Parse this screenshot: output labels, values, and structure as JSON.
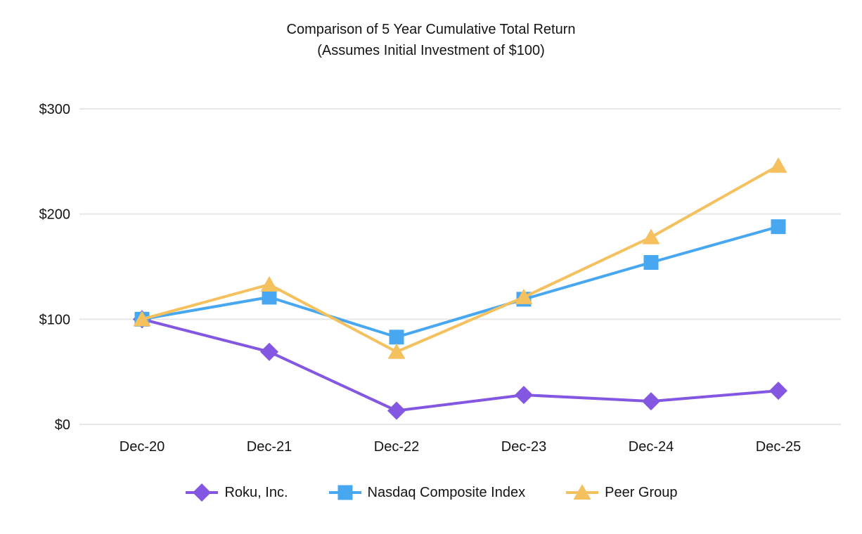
{
  "title": {
    "line1": "Comparison of 5 Year Cumulative Total Return",
    "line2": "(Assumes Initial Investment of $100)"
  },
  "chart_data": {
    "type": "line",
    "categories": [
      "Dec-20",
      "Dec-21",
      "Dec-22",
      "Dec-23",
      "Dec-24",
      "Dec-25"
    ],
    "series": [
      {
        "name": "Roku, Inc.",
        "marker": "diamond",
        "color": "#8457E2",
        "values": [
          100,
          69,
          13,
          28,
          22,
          32
        ]
      },
      {
        "name": "Nasdaq Composite Index",
        "marker": "square",
        "color": "#47A7F0",
        "values": [
          100,
          121,
          83,
          119,
          154,
          188
        ]
      },
      {
        "name": "Peer Group",
        "marker": "triangle",
        "color": "#F5C05E",
        "values": [
          100,
          133,
          69,
          121,
          178,
          246
        ]
      }
    ],
    "y_ticks": [
      0,
      100,
      200,
      300
    ],
    "y_tick_labels": [
      "$0",
      "$100",
      "$200",
      "$300"
    ],
    "ylim": [
      0,
      300
    ],
    "grid": "horizontal-only",
    "legend_position": "bottom",
    "xlabel": "",
    "ylabel": ""
  }
}
